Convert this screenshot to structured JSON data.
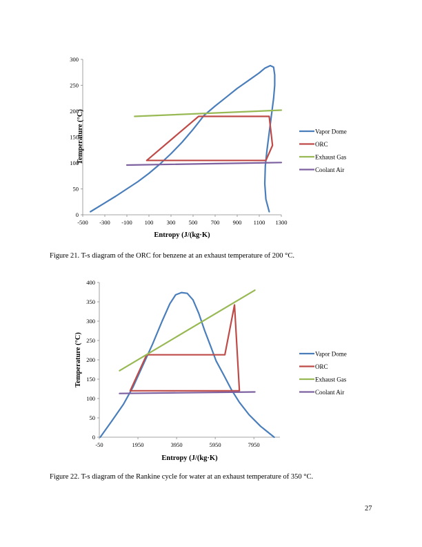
{
  "figures": [
    {
      "caption": "Figure 21. T-s diagram of the ORC for benzene at an exhaust temperature of 200 °C.",
      "chart_data": {
        "type": "line",
        "xlabel": "Entropy (J/(kg·K)",
        "ylabel": "Temperature (°C)",
        "xlim": [
          -500,
          1300
        ],
        "ylim": [
          0,
          300
        ],
        "x_ticks": [
          "-500",
          "-300",
          "-100",
          "100",
          "300",
          "500",
          "700",
          "900",
          "1100",
          "1300"
        ],
        "y_ticks": [
          "0",
          "50",
          "100",
          "150",
          "200",
          "250",
          "300"
        ],
        "grid": false,
        "legend_position": "right",
        "series": [
          {
            "name": "Vapor Dome",
            "color": "#4a7ebb",
            "x": [
              -430,
              -300,
              -200,
              -100,
              0,
              100,
              200,
              300,
              400,
              500,
              600,
              700,
              800,
              900,
              1000,
              1100,
              1150,
              1200,
              1230,
              1240,
              1240,
              1230,
              1215,
              1200,
              1185,
              1170,
              1155,
              1150,
              1160,
              1190
            ],
            "y": [
              6,
              23,
              36,
              50,
              64,
              80,
              98,
              118,
              140,
              165,
              192,
              210,
              227,
              244,
              259,
              274,
              283,
              288,
              285,
              270,
              250,
              225,
              200,
              175,
              150,
              125,
              95,
              60,
              30,
              6
            ]
          },
          {
            "name": "ORC",
            "color": "#be4b48",
            "x": [
              80,
              550,
              1190,
              1220,
              1160,
              80
            ],
            "y": [
              105,
              190,
              190,
              134,
              105,
              105
            ]
          },
          {
            "name": "Exhaust Gas",
            "color": "#98b954",
            "x": [
              -30,
              1300
            ],
            "y": [
              190,
              202
            ]
          },
          {
            "name": "Coolant Air",
            "color": "#7d60a0",
            "x": [
              -100,
              1300
            ],
            "y": [
              96,
              101
            ]
          }
        ]
      }
    },
    {
      "caption": "Figure 22. T-s diagram of the Rankine cycle for water at an exhaust temperature of 350 °C.",
      "chart_data": {
        "type": "line",
        "xlabel": "Entropy (J/(kg·K)",
        "ylabel": "Temperature (°C)",
        "xlim": [
          -50,
          9300
        ],
        "ylim": [
          0,
          400
        ],
        "x_ticks": [
          "-50",
          "1950",
          "3950",
          "5950",
          "7950"
        ],
        "x_tick_values": [
          -50,
          1950,
          3950,
          5950,
          7950
        ],
        "y_ticks": [
          "0",
          "50",
          "100",
          "150",
          "200",
          "250",
          "300",
          "350",
          "400"
        ],
        "grid": false,
        "legend_position": "right",
        "series": [
          {
            "name": "Vapor Dome",
            "color": "#4a7ebb",
            "x": [
              0,
              600,
              1200,
              1700,
              2200,
              2700,
              3200,
              3600,
              3900,
              4200,
              4500,
              4800,
              5100,
              5400,
              5700,
              6000,
              6400,
              6800,
              7200,
              7700,
              8300,
              9000
            ],
            "y": [
              0,
              42,
              85,
              130,
              185,
              240,
              300,
              345,
              368,
              374,
              372,
              355,
              320,
              276,
              237,
              197,
              160,
              122,
              90,
              58,
              28,
              0
            ]
          },
          {
            "name": "ORC",
            "color": "#be4b48",
            "x": [
              1550,
              2400,
              6450,
              6950,
              7200,
              1550
            ],
            "y": [
              120,
              213,
              213,
              342,
              120,
              120
            ]
          },
          {
            "name": "Exhaust Gas",
            "color": "#98b954",
            "x": [
              1000,
              8000
            ],
            "y": [
              172,
              380
            ]
          },
          {
            "name": "Coolant Air",
            "color": "#7d60a0",
            "x": [
              1000,
              8000
            ],
            "y": [
              113,
              117
            ]
          }
        ]
      }
    }
  ],
  "page_number": "27"
}
